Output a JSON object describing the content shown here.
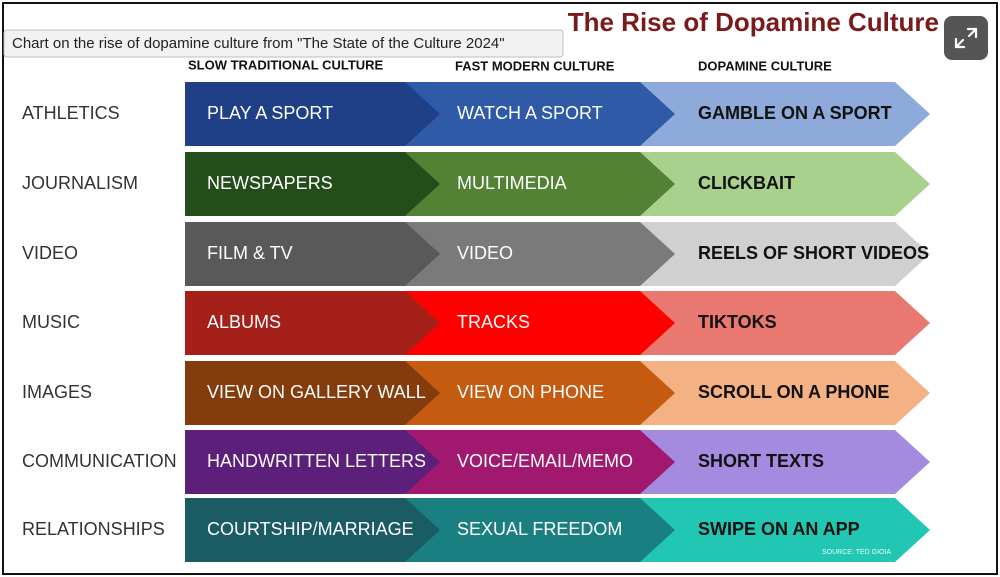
{
  "title": "The Rise of Dopamine Culture",
  "tooltip": "Chart on the rise of dopamine culture from \"The State of the Culture 2024\"",
  "columns": [
    "SLOW TRADITIONAL CULTURE",
    "FAST MODERN CULTURE",
    "DOPAMINE CULTURE"
  ],
  "rows": [
    {
      "label": "ATHLETICS",
      "cells": [
        "PLAY A SPORT",
        "WATCH A SPORT",
        "GAMBLE ON A SPORT"
      ],
      "colors": [
        "#1f3f86",
        "#2f5aa8",
        "#8eaadb"
      ]
    },
    {
      "label": "JOURNALISM",
      "cells": [
        "NEWSPAPERS",
        "MULTIMEDIA",
        "CLICKBAIT"
      ],
      "colors": [
        "#254d1a",
        "#548235",
        "#a9d18e"
      ]
    },
    {
      "label": "VIDEO",
      "cells": [
        "FILM &  TV",
        "VIDEO",
        "REELS OF SHORT VIDEOS"
      ],
      "colors": [
        "#595959",
        "#7a7a7a",
        "#d0d0d0"
      ]
    },
    {
      "label": "MUSIC",
      "cells": [
        "ALBUMS",
        "TRACKS",
        "TIKTOKS"
      ],
      "colors": [
        "#a52019",
        "#ff0000",
        "#e97870"
      ]
    },
    {
      "label": "IMAGES",
      "cells": [
        "VIEW ON GALLERY WALL",
        "VIEW ON PHONE",
        "SCROLL ON A PHONE"
      ],
      "colors": [
        "#843c0c",
        "#c55a11",
        "#f4b183"
      ]
    },
    {
      "label": "COMMUNICATION",
      "cells": [
        "HANDWRITTEN LETTERS",
        "VOICE/EMAIL/MEMO",
        "SHORT TEXTS"
      ],
      "colors": [
        "#5c1f7a",
        "#a0196e",
        "#a48be0"
      ]
    },
    {
      "label": "RELATIONSHIPS",
      "cells": [
        "COURTSHIP/MARRIAGE",
        "SEXUAL FREEDOM",
        "SWIPE ON AN APP"
      ],
      "colors": [
        "#1b5b63",
        "#1a7f80",
        "#22c7b4"
      ]
    }
  ],
  "source": "SOURCE: TED GIOIA"
}
